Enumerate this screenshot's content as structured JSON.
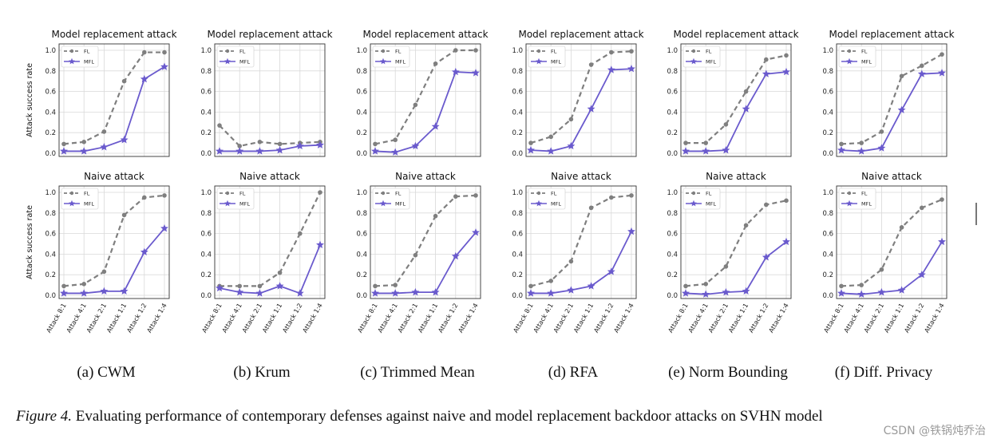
{
  "figure": {
    "caption_label": "Figure 4.",
    "caption_text": "Evaluating performance of contemporary defenses against naive and model replacement backdoor attacks on SVHN model",
    "watermark": "CSDN @铁锅炖乔治"
  },
  "chart_data": {
    "type": "line",
    "ylabel": "Attack success rate",
    "categories": [
      "Attack 8:1",
      "Attack 4:1",
      "Attack 2:1",
      "Attack 1:1",
      "Attack 1:2",
      "Attack 1:4"
    ],
    "ylim": [
      0,
      1.0
    ],
    "yticks": [
      "0.0",
      "0.2",
      "0.4",
      "0.6",
      "0.8",
      "1.0"
    ],
    "grid": true,
    "legend": {
      "placement": "top-left",
      "entries": [
        "FL",
        "MFL"
      ]
    },
    "series_style": {
      "FL": "#7f7f7f",
      "MFL": "#6a5acd"
    },
    "rows": [
      {
        "title": "Model replacement attack"
      },
      {
        "title": "Naive attack"
      }
    ],
    "columns": [
      {
        "subcaption": "(a) CWM",
        "panels": [
          {
            "series": [
              {
                "name": "FL",
                "values": [
                  0.09,
                  0.11,
                  0.21,
                  0.7,
                  0.98,
                  0.98
                ]
              },
              {
                "name": "MFL",
                "values": [
                  0.02,
                  0.02,
                  0.06,
                  0.13,
                  0.72,
                  0.84
                ]
              }
            ]
          },
          {
            "series": [
              {
                "name": "FL",
                "values": [
                  0.09,
                  0.11,
                  0.23,
                  0.78,
                  0.95,
                  0.97
                ]
              },
              {
                "name": "MFL",
                "values": [
                  0.02,
                  0.02,
                  0.04,
                  0.04,
                  0.42,
                  0.65
                ]
              }
            ]
          }
        ]
      },
      {
        "subcaption": "(b) Krum",
        "panels": [
          {
            "series": [
              {
                "name": "FL",
                "values": [
                  0.27,
                  0.07,
                  0.11,
                  0.09,
                  0.1,
                  0.11
                ]
              },
              {
                "name": "MFL",
                "values": [
                  0.02,
                  0.02,
                  0.02,
                  0.03,
                  0.07,
                  0.08
                ]
              }
            ]
          },
          {
            "series": [
              {
                "name": "FL",
                "values": [
                  0.09,
                  0.09,
                  0.09,
                  0.22,
                  0.6,
                  1.0
                ]
              },
              {
                "name": "MFL",
                "values": [
                  0.07,
                  0.03,
                  0.02,
                  0.09,
                  0.02,
                  0.49
                ]
              }
            ]
          }
        ]
      },
      {
        "subcaption": "(c) Trimmed Mean",
        "panels": [
          {
            "series": [
              {
                "name": "FL",
                "values": [
                  0.09,
                  0.13,
                  0.47,
                  0.87,
                  1.0,
                  1.0
                ]
              },
              {
                "name": "MFL",
                "values": [
                  0.02,
                  0.01,
                  0.07,
                  0.26,
                  0.79,
                  0.78
                ]
              }
            ]
          },
          {
            "series": [
              {
                "name": "FL",
                "values": [
                  0.09,
                  0.1,
                  0.39,
                  0.77,
                  0.96,
                  0.97
                ]
              },
              {
                "name": "MFL",
                "values": [
                  0.02,
                  0.02,
                  0.03,
                  0.03,
                  0.38,
                  0.61
                ]
              }
            ]
          }
        ]
      },
      {
        "subcaption": "(d) RFA",
        "panels": [
          {
            "series": [
              {
                "name": "FL",
                "values": [
                  0.1,
                  0.16,
                  0.33,
                  0.86,
                  0.98,
                  0.99
                ]
              },
              {
                "name": "MFL",
                "values": [
                  0.03,
                  0.02,
                  0.07,
                  0.43,
                  0.81,
                  0.82
                ]
              }
            ]
          },
          {
            "series": [
              {
                "name": "FL",
                "values": [
                  0.09,
                  0.14,
                  0.33,
                  0.85,
                  0.95,
                  0.97
                ]
              },
              {
                "name": "MFL",
                "values": [
                  0.02,
                  0.02,
                  0.05,
                  0.09,
                  0.23,
                  0.62
                ]
              }
            ]
          }
        ]
      },
      {
        "subcaption": "(e) Norm Bounding",
        "panels": [
          {
            "series": [
              {
                "name": "FL",
                "values": [
                  0.1,
                  0.1,
                  0.28,
                  0.6,
                  0.91,
                  0.95
                ]
              },
              {
                "name": "MFL",
                "values": [
                  0.02,
                  0.02,
                  0.03,
                  0.43,
                  0.77,
                  0.79
                ]
              }
            ]
          },
          {
            "series": [
              {
                "name": "FL",
                "values": [
                  0.09,
                  0.11,
                  0.28,
                  0.68,
                  0.88,
                  0.92
                ]
              },
              {
                "name": "MFL",
                "values": [
                  0.02,
                  0.01,
                  0.03,
                  0.04,
                  0.37,
                  0.52
                ]
              }
            ]
          }
        ]
      },
      {
        "subcaption": "(f) Diff. Privacy",
        "panels": [
          {
            "series": [
              {
                "name": "FL",
                "values": [
                  0.09,
                  0.1,
                  0.21,
                  0.75,
                  0.85,
                  0.96
                ]
              },
              {
                "name": "MFL",
                "values": [
                  0.03,
                  0.02,
                  0.05,
                  0.42,
                  0.77,
                  0.78
                ]
              }
            ]
          },
          {
            "series": [
              {
                "name": "FL",
                "values": [
                  0.09,
                  0.1,
                  0.25,
                  0.66,
                  0.85,
                  0.93
                ]
              },
              {
                "name": "MFL",
                "values": [
                  0.02,
                  0.01,
                  0.03,
                  0.05,
                  0.2,
                  0.52
                ]
              }
            ]
          }
        ]
      }
    ]
  }
}
